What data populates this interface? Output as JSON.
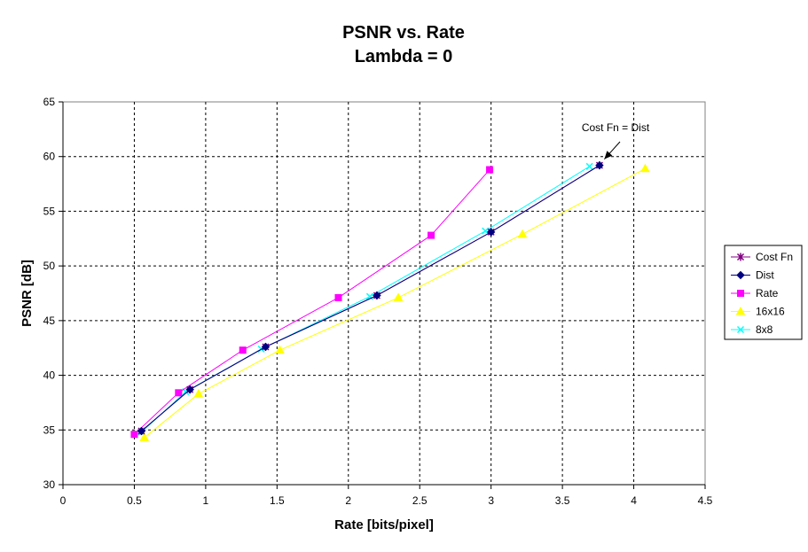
{
  "chart_data": {
    "type": "line",
    "title": "PSNR vs. Rate",
    "subtitle": "Lambda = 0",
    "xlabel": "Rate [bits/pixel]",
    "ylabel": "PSNR [dB]",
    "xlim": [
      0,
      4.5
    ],
    "ylim": [
      30,
      65
    ],
    "xticks": [
      0,
      0.5,
      1,
      1.5,
      2,
      2.5,
      3,
      3.5,
      4,
      4.5
    ],
    "xtick_labels": [
      "0",
      "0.5",
      "1",
      "1.5",
      "2",
      "2.5",
      "3",
      "3.5",
      "4",
      "4.5"
    ],
    "yticks": [
      30,
      35,
      40,
      45,
      50,
      55,
      60,
      65
    ],
    "ytick_labels": [
      "30",
      "35",
      "40",
      "45",
      "50",
      "55",
      "60",
      "65"
    ],
    "grid": true,
    "legend_position": "right",
    "series": [
      {
        "name": "Cost Fn",
        "color": "#800080",
        "marker": "star",
        "x": [
          0.55,
          0.89,
          1.42,
          2.2,
          3.0,
          3.76
        ],
        "y": [
          34.9,
          38.7,
          42.6,
          47.3,
          53.1,
          59.2
        ]
      },
      {
        "name": "Dist",
        "color": "#000080",
        "marker": "diamond",
        "x": [
          0.55,
          0.89,
          1.42,
          2.2,
          3.0,
          3.76
        ],
        "y": [
          34.9,
          38.7,
          42.6,
          47.3,
          53.1,
          59.2
        ]
      },
      {
        "name": "Rate",
        "color": "#ff00ff",
        "marker": "square",
        "x": [
          0.5,
          0.81,
          1.26,
          1.93,
          2.58,
          2.99
        ],
        "y": [
          34.6,
          38.4,
          42.3,
          47.1,
          52.8,
          58.8
        ]
      },
      {
        "name": "16x16",
        "color": "#ffff00",
        "marker": "triangle",
        "x": [
          0.57,
          0.95,
          1.52,
          2.35,
          3.22,
          4.08
        ],
        "y": [
          34.3,
          38.3,
          42.3,
          47.1,
          52.9,
          58.9
        ]
      },
      {
        "name": "8x8",
        "color": "#00ffff",
        "marker": "x",
        "x": [
          0.55,
          0.86,
          1.39,
          2.15,
          2.96,
          3.69
        ],
        "y": [
          34.8,
          38.5,
          42.4,
          47.2,
          53.2,
          59.1
        ]
      }
    ],
    "annotations": [
      {
        "text": "Cost Fn = Dist",
        "x": 3.8,
        "y": 59.6,
        "arrow": true
      }
    ]
  }
}
